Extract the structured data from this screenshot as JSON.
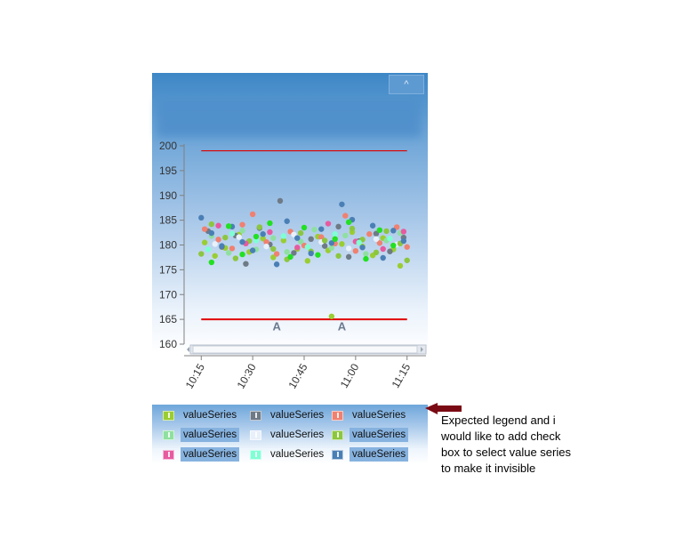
{
  "colors": {
    "threshold_line": "#e00000",
    "arrow": "#7a0a14",
    "axis": "#808080"
  },
  "header": {
    "collapse_label": "^"
  },
  "chart_data": {
    "type": "scatter",
    "title": "",
    "xlabel": "",
    "ylabel": "",
    "ylim": [
      160,
      200
    ],
    "xlim": [
      "10:10",
      "11:20"
    ],
    "y_ticks": [
      "200",
      "195",
      "190",
      "185",
      "180",
      "175",
      "170",
      "165",
      "160"
    ],
    "x_ticks": [
      "10:15",
      "10:30",
      "10:45",
      "11:00",
      "11:15"
    ],
    "grid": false,
    "legend_position": "bottom",
    "threshold_lines": [
      {
        "y": 199,
        "x_start": "10:15",
        "x_end": "11:15"
      },
      {
        "y": 165,
        "x_start": "10:15",
        "x_end": "11:15"
      }
    ],
    "markers": [
      {
        "label": "A",
        "x": "10:37",
        "y": 163.7
      },
      {
        "label": "A",
        "x": "10:56",
        "y": 163.7
      }
    ],
    "series": [
      {
        "name": "valueSeries",
        "color": "#9acd32",
        "points": [
          [
            "10:16",
            180.5
          ],
          [
            "10:19",
            177.8
          ],
          [
            "10:22",
            179.4
          ],
          [
            "10:26",
            182.1
          ],
          [
            "10:29",
            178.6
          ],
          [
            "10:33",
            181.3
          ],
          [
            "10:36",
            177.5
          ],
          [
            "10:39",
            180.9
          ],
          [
            "10:43",
            179.2
          ],
          [
            "10:46",
            176.8
          ],
          [
            "10:49",
            181.7
          ],
          [
            "10:52",
            178.9
          ],
          [
            "10:56",
            180.2
          ],
          [
            "10:59",
            182.6
          ],
          [
            "11:02",
            179.7
          ],
          [
            "11:05",
            177.9
          ],
          [
            "11:08",
            181.4
          ],
          [
            "11:11",
            179.1
          ],
          [
            "11:13",
            175.8
          ],
          [
            "10:53",
            165.6
          ]
        ]
      },
      {
        "name": "valueSeries",
        "color": "#6e7a86",
        "points": [
          [
            "10:17",
            182.8
          ],
          [
            "10:21",
            179.6
          ],
          [
            "10:25",
            181.9
          ],
          [
            "10:28",
            176.2
          ],
          [
            "10:32",
            183.4
          ],
          [
            "10:35",
            180.1
          ],
          [
            "10:38",
            188.9
          ],
          [
            "10:42",
            178.4
          ],
          [
            "10:47",
            181.2
          ],
          [
            "10:51",
            179.8
          ],
          [
            "10:55",
            183.7
          ],
          [
            "10:58",
            177.6
          ],
          [
            "11:01",
            180.8
          ],
          [
            "11:06",
            182.3
          ],
          [
            "11:10",
            178.7
          ],
          [
            "11:14",
            181.5
          ]
        ]
      },
      {
        "name": "valueSeries",
        "color": "#f08070",
        "points": [
          [
            "10:16",
            183.2
          ],
          [
            "10:20",
            181.1
          ],
          [
            "10:24",
            179.3
          ],
          [
            "10:27",
            184.1
          ],
          [
            "10:30",
            186.2
          ],
          [
            "10:34",
            180.6
          ],
          [
            "10:37",
            178.2
          ],
          [
            "10:41",
            182.7
          ],
          [
            "10:45",
            179.9
          ],
          [
            "10:50",
            181.6
          ],
          [
            "10:54",
            180.3
          ],
          [
            "10:57",
            185.9
          ],
          [
            "11:00",
            178.8
          ],
          [
            "11:04",
            182.2
          ],
          [
            "11:07",
            180.4
          ],
          [
            "11:12",
            183.6
          ],
          [
            "11:15",
            179.6
          ]
        ]
      },
      {
        "name": "valueSeries",
        "color": "#8fe0a0",
        "points": [
          [
            "10:18",
            181.8
          ],
          [
            "10:23",
            178.4
          ],
          [
            "10:27",
            182.9
          ],
          [
            "10:31",
            179.1
          ],
          [
            "10:36",
            181.4
          ],
          [
            "10:40",
            178.6
          ],
          [
            "10:44",
            180.7
          ],
          [
            "10:48",
            183.1
          ],
          [
            "10:53",
            179.4
          ],
          [
            "10:57",
            181.9
          ],
          [
            "11:03",
            178.2
          ],
          [
            "11:09",
            180.9
          ],
          [
            "11:13",
            182.4
          ]
        ]
      },
      {
        "name": "valueSeries",
        "color": "#e8f0fa",
        "points": [
          [
            "10:19",
            180.2
          ],
          [
            "10:26",
            181.6
          ],
          [
            "10:34",
            179.7
          ],
          [
            "10:42",
            182.1
          ],
          [
            "10:50",
            180.6
          ],
          [
            "10:58",
            179.3
          ],
          [
            "11:06",
            181.2
          ],
          [
            "11:12",
            180.1
          ]
        ]
      },
      {
        "name": "valueSeries",
        "color": "#8cc63f",
        "points": [
          [
            "10:15",
            178.2
          ],
          [
            "10:18",
            184.2
          ],
          [
            "10:22",
            181.5
          ],
          [
            "10:25",
            177.3
          ],
          [
            "10:29",
            180.8
          ],
          [
            "10:32",
            183.6
          ],
          [
            "10:36",
            179.2
          ],
          [
            "10:40",
            177.1
          ],
          [
            "10:44",
            182.4
          ],
          [
            "10:47",
            178.7
          ],
          [
            "10:51",
            180.9
          ],
          [
            "10:55",
            177.8
          ],
          [
            "10:59",
            183.3
          ],
          [
            "11:02",
            181.1
          ],
          [
            "11:06",
            178.5
          ],
          [
            "11:09",
            182.8
          ],
          [
            "11:13",
            180.3
          ],
          [
            "11:15",
            176.9
          ]
        ]
      },
      {
        "name": "valueSeries",
        "color": "#e75aa0",
        "points": [
          [
            "10:20",
            183.9
          ],
          [
            "10:28",
            180.3
          ],
          [
            "10:35",
            182.6
          ],
          [
            "10:43",
            179.5
          ],
          [
            "10:52",
            184.3
          ],
          [
            "11:00",
            180.7
          ],
          [
            "11:08",
            179.2
          ],
          [
            "11:14",
            182.7
          ]
        ]
      },
      {
        "name": "valueSeries",
        "color": "#7fffd4",
        "points": [
          [
            "10:17",
            179.1
          ],
          [
            "10:24",
            182.3
          ],
          [
            "10:31",
            180.9
          ],
          [
            "10:39",
            181.8
          ],
          [
            "10:46",
            179.6
          ],
          [
            "10:54",
            182.2
          ],
          [
            "11:01",
            180.5
          ],
          [
            "11:10",
            181.3
          ]
        ]
      },
      {
        "name": "valueSeries",
        "color": "#4a7fb5",
        "points": [
          [
            "10:15",
            185.5
          ],
          [
            "10:18",
            182.4
          ],
          [
            "10:21",
            179.8
          ],
          [
            "10:24",
            183.7
          ],
          [
            "10:27",
            180.6
          ],
          [
            "10:30",
            178.9
          ],
          [
            "10:33",
            182.2
          ],
          [
            "10:37",
            176.1
          ],
          [
            "10:40",
            184.8
          ],
          [
            "10:43",
            181.4
          ],
          [
            "10:47",
            178.3
          ],
          [
            "10:50",
            183.2
          ],
          [
            "10:53",
            180.4
          ],
          [
            "10:56",
            188.2
          ],
          [
            "10:59",
            185.1
          ],
          [
            "11:02",
            179.5
          ],
          [
            "11:05",
            183.9
          ],
          [
            "11:08",
            177.4
          ],
          [
            "11:11",
            182.9
          ],
          [
            "11:14",
            180.8
          ]
        ]
      },
      {
        "name": "",
        "color": "#22e022",
        "points": [
          [
            "10:18",
            176.5
          ],
          [
            "10:23",
            183.8
          ],
          [
            "10:27",
            178.1
          ],
          [
            "10:31",
            181.7
          ],
          [
            "10:35",
            184.4
          ],
          [
            "10:41",
            177.6
          ],
          [
            "10:45",
            183.5
          ],
          [
            "10:49",
            178.0
          ],
          [
            "10:54",
            181.2
          ],
          [
            "10:58",
            184.6
          ],
          [
            "11:03",
            177.2
          ],
          [
            "11:07",
            183.0
          ],
          [
            "11:11",
            179.9
          ]
        ]
      }
    ]
  },
  "legend": {
    "items": [
      {
        "label": "valueSeries",
        "color": "#9acd32",
        "boxed": false
      },
      {
        "label": "valueSeries",
        "color": "#6e7a86",
        "boxed": false
      },
      {
        "label": "valueSeries",
        "color": "#f08070",
        "boxed": false
      },
      {
        "label": "valueSeries",
        "color": "#8fe0a0",
        "boxed": true
      },
      {
        "label": "valueSeries",
        "color": "#e8f0fa",
        "boxed": false
      },
      {
        "label": "valueSeries",
        "color": "#8cc63f",
        "boxed": true
      },
      {
        "label": "valueSeries",
        "color": "#e75aa0",
        "boxed": true
      },
      {
        "label": "valueSeries",
        "color": "#7fffd4",
        "boxed": false
      },
      {
        "label": "valueSeries",
        "color": "#4a7fb5",
        "boxed": true
      }
    ]
  },
  "annotation": {
    "lines": [
      "Expected legend and i",
      "would like to add check",
      "box to select value series",
      "to make it invisible"
    ]
  }
}
